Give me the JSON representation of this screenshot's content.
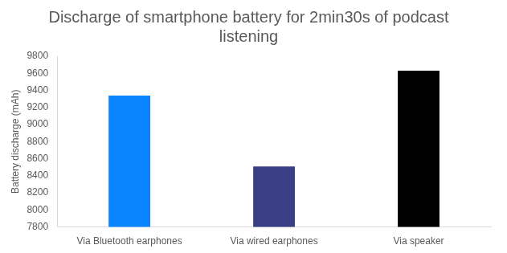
{
  "chart_data": {
    "type": "bar",
    "title": "Discharge of smartphone battery for 2min30s of podcast listening",
    "y_label": "Battery discharge (mAh)",
    "categories": [
      "Via Bluetooth earphones",
      "Via wired earphones",
      "Via speaker"
    ],
    "values": [
      9340,
      8510,
      9630
    ],
    "colors": [
      "#0a84ff",
      "#3a3f85",
      "#000000"
    ],
    "ylim": [
      7800,
      9800
    ],
    "yticks": [
      7800,
      8000,
      8200,
      8400,
      8600,
      8800,
      9000,
      9200,
      9400,
      9600,
      9800
    ],
    "grid": false
  }
}
